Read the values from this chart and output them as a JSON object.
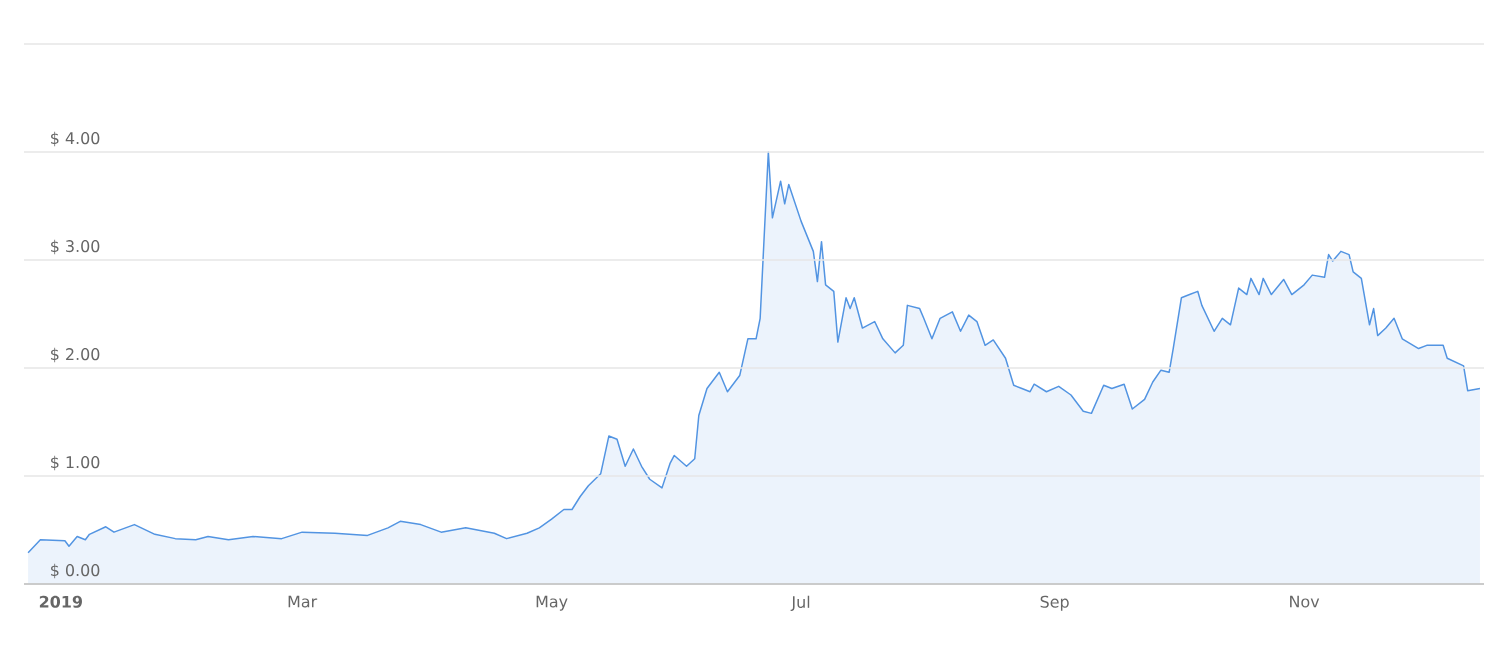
{
  "chart_data": {
    "type": "area",
    "x": [
      "2018-12-24",
      "2018-12-27",
      "2019-01-02",
      "2019-01-03",
      "2019-01-05",
      "2019-01-07",
      "2019-01-08",
      "2019-01-12",
      "2019-01-14",
      "2019-01-19",
      "2019-01-24",
      "2019-01-29",
      "2019-02-03",
      "2019-02-06",
      "2019-02-11",
      "2019-02-17",
      "2019-02-24",
      "2019-03-01",
      "2019-03-09",
      "2019-03-17",
      "2019-03-22",
      "2019-03-25",
      "2019-03-30",
      "2019-04-04",
      "2019-04-10",
      "2019-04-17",
      "2019-04-20",
      "2019-04-25",
      "2019-04-28",
      "2019-05-01",
      "2019-05-04",
      "2019-05-06",
      "2019-05-08",
      "2019-05-10",
      "2019-05-13",
      "2019-05-15",
      "2019-05-17",
      "2019-05-19",
      "2019-05-21",
      "2019-05-23",
      "2019-05-25",
      "2019-05-28",
      "2019-05-30",
      "2019-05-31",
      "2019-06-03",
      "2019-06-05",
      "2019-06-06",
      "2019-06-08",
      "2019-06-11",
      "2019-06-13",
      "2019-06-16",
      "2019-06-18",
      "2019-06-20",
      "2019-06-21",
      "2019-06-23",
      "2019-06-24",
      "2019-06-26",
      "2019-06-27",
      "2019-06-28",
      "2019-07-01",
      "2019-07-04",
      "2019-07-05",
      "2019-07-06",
      "2019-07-07",
      "2019-07-09",
      "2019-07-10",
      "2019-07-12",
      "2019-07-13",
      "2019-07-14",
      "2019-07-16",
      "2019-07-19",
      "2019-07-21",
      "2019-07-24",
      "2019-07-26",
      "2019-07-27",
      "2019-07-30",
      "2019-07-31",
      "2019-08-02",
      "2019-08-04",
      "2019-08-07",
      "2019-08-09",
      "2019-08-11",
      "2019-08-13",
      "2019-08-15",
      "2019-08-17",
      "2019-08-20",
      "2019-08-22",
      "2019-08-24",
      "2019-08-26",
      "2019-08-27",
      "2019-08-30",
      "2019-09-02",
      "2019-09-05",
      "2019-09-08",
      "2019-09-10",
      "2019-09-13",
      "2019-09-15",
      "2019-09-18",
      "2019-09-20",
      "2019-09-23",
      "2019-09-25",
      "2019-09-27",
      "2019-09-29",
      "2019-09-30",
      "2019-10-02",
      "2019-10-04",
      "2019-10-06",
      "2019-10-07",
      "2019-10-10",
      "2019-10-12",
      "2019-10-14",
      "2019-10-16",
      "2019-10-18",
      "2019-10-19",
      "2019-10-21",
      "2019-10-22",
      "2019-10-24",
      "2019-10-27",
      "2019-10-29",
      "2019-11-01",
      "2019-11-03",
      "2019-11-06",
      "2019-11-07",
      "2019-11-08",
      "2019-11-10",
      "2019-11-12",
      "2019-11-13",
      "2019-11-15",
      "2019-11-17",
      "2019-11-18",
      "2019-11-19",
      "2019-11-21",
      "2019-11-23",
      "2019-11-25",
      "2019-11-29",
      "2019-12-01",
      "2019-12-05",
      "2019-12-06",
      "2019-12-10",
      "2019-12-11",
      "2019-12-14"
    ],
    "series": [
      {
        "color": "#5294e2",
        "values": [
          0.29,
          0.41,
          0.4,
          0.35,
          0.44,
          0.41,
          0.46,
          0.53,
          0.48,
          0.55,
          0.46,
          0.42,
          0.41,
          0.44,
          0.41,
          0.44,
          0.42,
          0.48,
          0.47,
          0.45,
          0.52,
          0.58,
          0.55,
          0.48,
          0.52,
          0.47,
          0.42,
          0.47,
          0.52,
          0.6,
          0.69,
          0.69,
          0.81,
          0.91,
          1.02,
          1.37,
          1.34,
          1.09,
          1.25,
          1.09,
          0.97,
          0.89,
          1.12,
          1.19,
          1.09,
          1.16,
          1.56,
          1.81,
          1.96,
          1.78,
          1.93,
          2.27,
          2.27,
          2.46,
          4.0,
          3.39,
          3.73,
          3.52,
          3.7,
          3.36,
          3.08,
          2.8,
          3.17,
          2.77,
          2.71,
          2.24,
          2.65,
          2.55,
          2.65,
          2.37,
          2.43,
          2.27,
          2.14,
          2.21,
          2.58,
          2.55,
          2.46,
          2.27,
          2.46,
          2.52,
          2.34,
          2.49,
          2.43,
          2.21,
          2.26,
          2.09,
          1.84,
          1.81,
          1.78,
          1.85,
          1.78,
          1.83,
          1.75,
          1.6,
          1.58,
          1.84,
          1.81,
          1.85,
          1.62,
          1.71,
          1.87,
          1.98,
          1.96,
          2.18,
          2.65,
          2.68,
          2.71,
          2.58,
          2.34,
          2.46,
          2.4,
          2.74,
          2.68,
          2.83,
          2.68,
          2.83,
          2.68,
          2.82,
          2.68,
          2.77,
          2.86,
          2.84,
          3.05,
          2.99,
          3.08,
          3.05,
          2.89,
          2.83,
          2.4,
          2.55,
          2.3,
          2.37,
          2.46,
          2.27,
          2.18,
          2.21,
          2.21,
          2.09,
          2.02,
          1.79,
          1.81
        ]
      }
    ],
    "xlim": [
      "2018-12-23",
      "2019-12-15"
    ],
    "xticks": [
      {
        "value": "2019-01-01",
        "label": "2019"
      },
      {
        "value": "2019-03-01",
        "label": "Mar"
      },
      {
        "value": "2019-05-01",
        "label": "May"
      },
      {
        "value": "2019-07-01",
        "label": "Jul"
      },
      {
        "value": "2019-09-01",
        "label": "Sep"
      },
      {
        "value": "2019-11-01",
        "label": "Nov"
      }
    ],
    "ylim": [
      0,
      5
    ],
    "yticks": [
      {
        "value": 0,
        "label": "$ 0.00"
      },
      {
        "value": 1,
        "label": "$ 1.00"
      },
      {
        "value": 2,
        "label": "$ 2.00"
      },
      {
        "value": 3,
        "label": "$ 3.00"
      },
      {
        "value": 4,
        "label": "$ 4.00"
      },
      {
        "value": 5,
        "label": null
      }
    ],
    "grid": "y"
  }
}
